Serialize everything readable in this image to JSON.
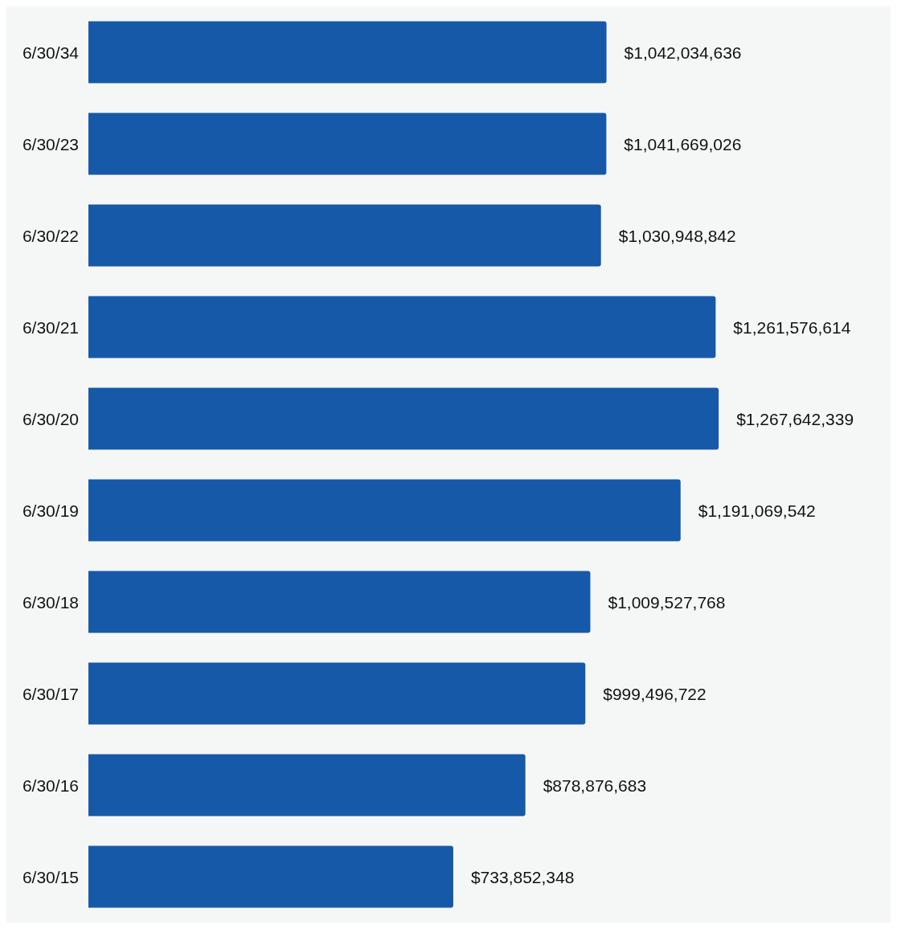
{
  "chart_data": {
    "type": "bar",
    "orientation": "horizontal",
    "categories": [
      "6/30/34",
      "6/30/23",
      "6/30/22",
      "6/30/21",
      "6/30/20",
      "6/30/19",
      "6/30/18",
      "6/30/17",
      "6/30/16",
      "6/30/15"
    ],
    "values": [
      1042034636,
      1041669026,
      1030948842,
      1261576614,
      1267642339,
      1191069542,
      1009527768,
      999496722,
      878876683,
      733852348
    ],
    "value_labels": [
      "$1,042,034,636",
      "$1,041,669,026",
      "$1,030,948,842",
      "$1,261,576,614",
      "$1,267,642,339",
      "$1,191,069,542",
      "$1,009,527,768",
      "$999,496,722",
      "$878,876,683",
      "$733,852,348"
    ],
    "color": "#1659a8"
  }
}
